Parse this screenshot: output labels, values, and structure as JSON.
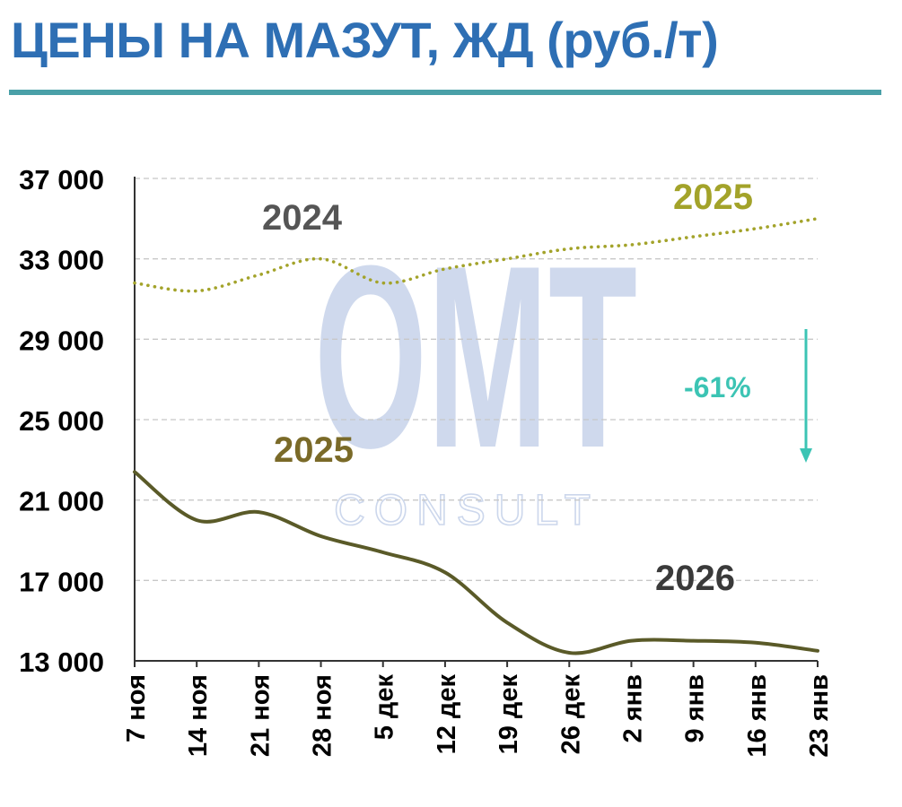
{
  "colors": {
    "title": "#2e6fb4",
    "rule": "#4aa0a8",
    "grid": "#c8c8c8",
    "series_prev": "#a3a32a",
    "series_curr": "#5a5a28",
    "arrow": "#3cc4b4",
    "watermark_blue": "#c7d3ea",
    "watermark_teal": "#cdeee6"
  },
  "watermark": {
    "main": "OMT",
    "sub": "CONSULT"
  },
  "chart_data": {
    "type": "line",
    "title": "ЦЕНЫ НА МАЗУТ, ЖД (руб./т)",
    "xlabel": "",
    "ylabel": "",
    "categories": [
      "7 ноя",
      "14 ноя",
      "21 ноя",
      "28 ноя",
      "5 дек",
      "12 дек",
      "19 дек",
      "26 дек",
      "2 янв",
      "9 янв",
      "16 янв",
      "23 янв"
    ],
    "ylim": [
      13000,
      37000
    ],
    "yticks": [
      13000,
      17000,
      21000,
      25000,
      29000,
      33000,
      37000
    ],
    "ytick_labels": [
      "13 000",
      "17 000",
      "21 000",
      "25 000",
      "29 000",
      "33 000",
      "37 000"
    ],
    "grid": true,
    "series": [
      {
        "style": "dotted",
        "values": [
          31800,
          31400,
          32200,
          33000,
          31800,
          32500,
          33000,
          33500,
          33700,
          34100,
          34500,
          35000
        ]
      },
      {
        "style": "solid",
        "values": [
          22400,
          20000,
          20400,
          19200,
          18400,
          17400,
          14900,
          13400,
          14000,
          14000,
          13900,
          13500
        ]
      }
    ],
    "annotations": {
      "year_prev_left": "2024",
      "year_prev_right": "2025",
      "year_curr_left": "2025",
      "year_curr_right": "2026",
      "change": "-61%"
    }
  }
}
